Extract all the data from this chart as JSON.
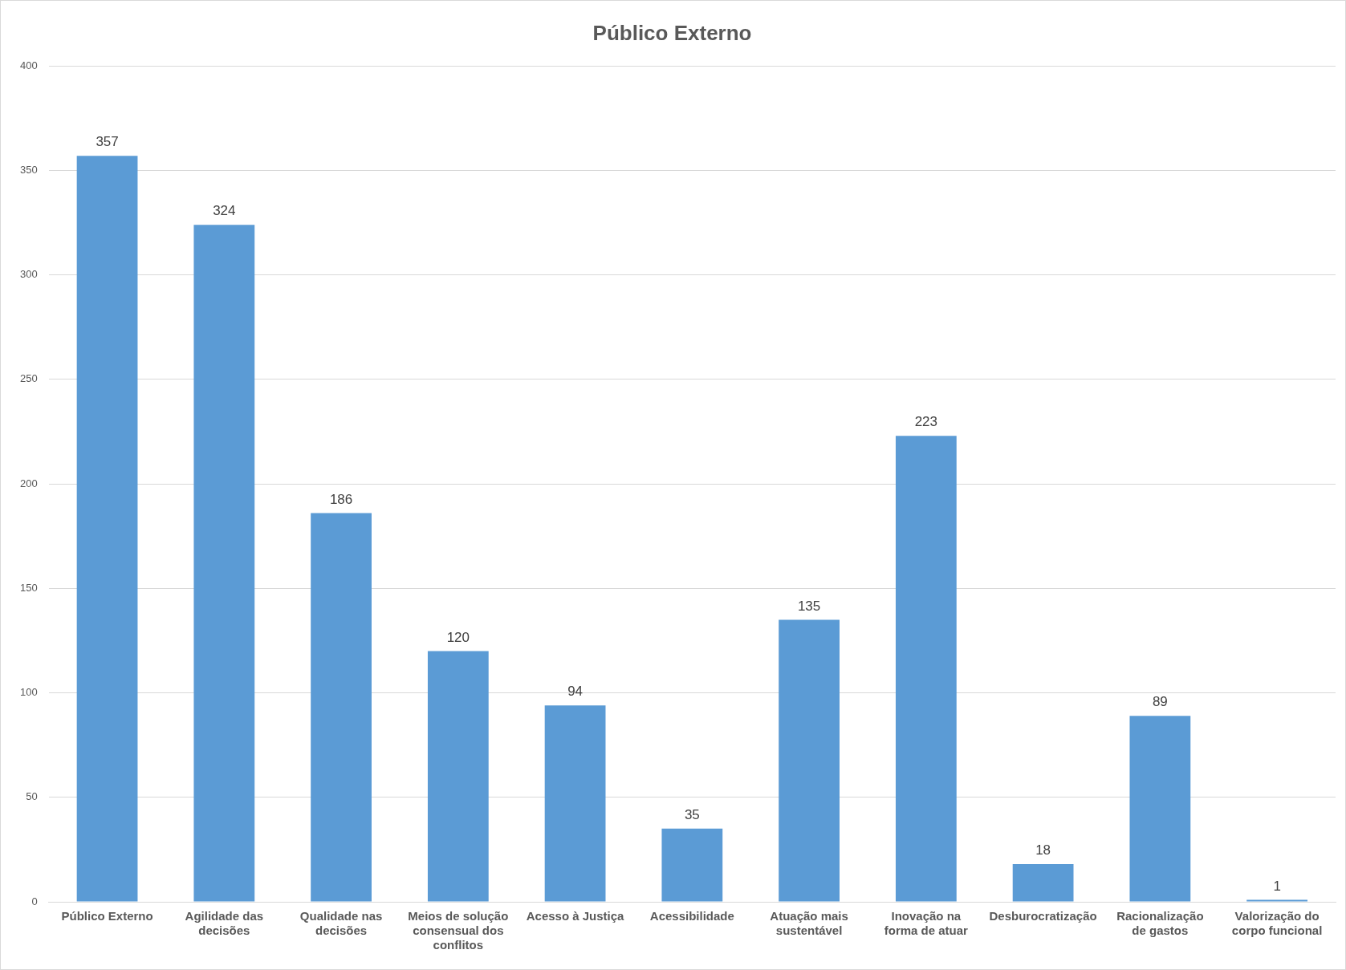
{
  "chart_data": {
    "type": "bar",
    "title": "Público Externo",
    "categories": [
      "Público Externo",
      "Agilidade das decisões",
      "Qualidade nas decisões",
      "Meios de solução consensual dos conflitos",
      "Acesso à Justiça",
      "Acessibilidade",
      "Atuação mais sustentável",
      "Inovação na forma de atuar",
      "Desburocratização",
      "Racionalização de gastos",
      "Valorização do corpo funcional"
    ],
    "values": [
      357,
      324,
      186,
      120,
      94,
      35,
      135,
      223,
      18,
      89,
      1
    ],
    "color": "#5b9bd5",
    "ylim": [
      0,
      400
    ],
    "yticks": [
      0,
      50,
      100,
      150,
      200,
      250,
      300,
      350,
      400
    ],
    "grid": "y",
    "data_labels": true,
    "legend": false
  }
}
